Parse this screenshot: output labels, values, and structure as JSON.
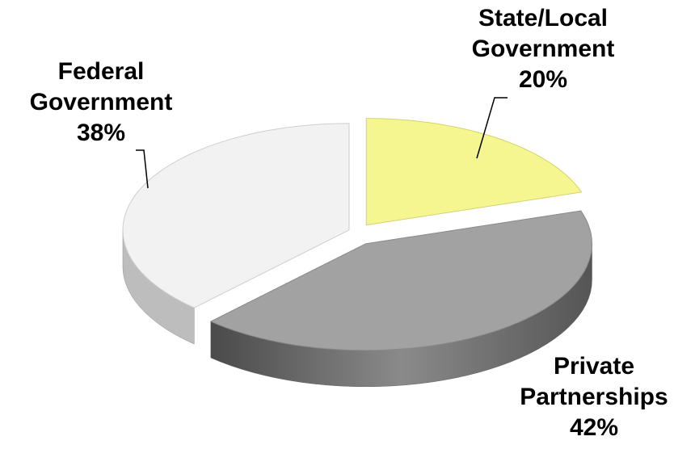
{
  "chart_data": {
    "type": "pie",
    "categories": [
      "State/Local Government",
      "Private Partnerships",
      "Federal Government"
    ],
    "values": [
      20,
      42,
      38
    ],
    "value_labels": [
      "20%",
      "42%",
      "38%"
    ],
    "colors": [
      "#f6f690",
      "#a2a2a2",
      "#f2f2f2"
    ]
  }
}
